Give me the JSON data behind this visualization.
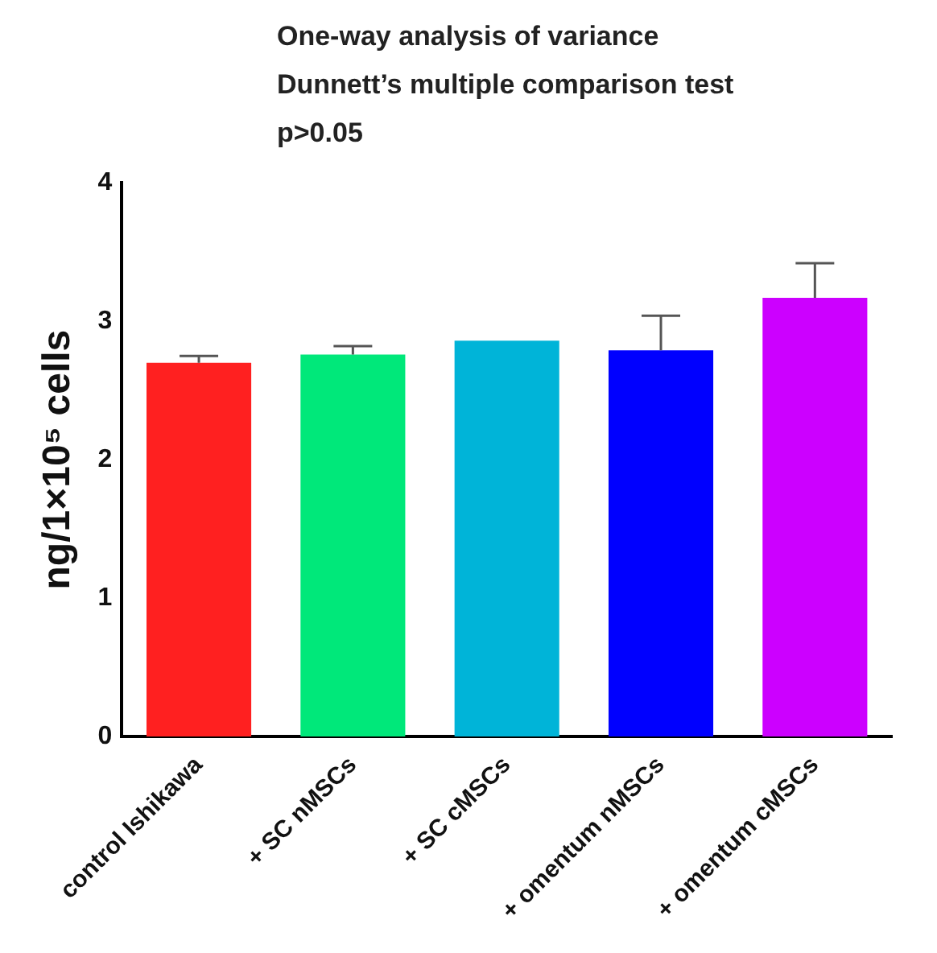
{
  "chart_data": {
    "type": "bar",
    "annotations": [
      "One-way analysis of variance",
      "Dunnett’s multiple comparison test",
      "p>0.05"
    ],
    "ylabel": "ng/1×10⁵ cells",
    "categories": [
      "control Ishikawa",
      "+ SC nMSCs",
      "+ SC cMSCs",
      "+ omentum nMSCs",
      "+ omentum cMSCs"
    ],
    "values": [
      2.7,
      2.76,
      2.86,
      2.79,
      3.17
    ],
    "errors": [
      0.05,
      0.06,
      null,
      0.25,
      0.25
    ],
    "colors": [
      "#ff2020",
      "#00e87a",
      "#00b4d8",
      "#0000ff",
      "#cc00ff"
    ],
    "ylim": [
      0,
      4
    ],
    "yticks": [
      0,
      1,
      2,
      3,
      4
    ],
    "grid": false,
    "legend": false
  }
}
